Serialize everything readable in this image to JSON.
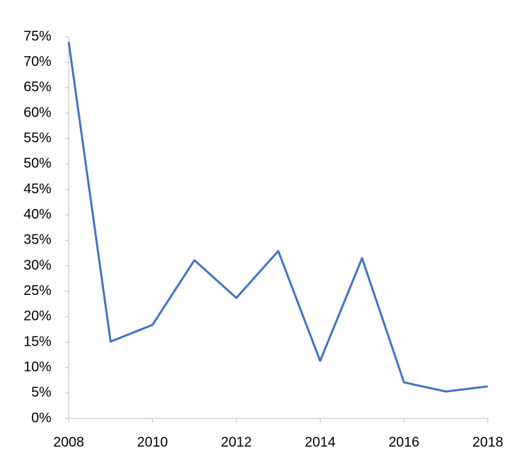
{
  "chart_data": {
    "type": "line",
    "x": [
      2008,
      2009,
      2010,
      2011,
      2012,
      2013,
      2014,
      2015,
      2016,
      2017,
      2018
    ],
    "series": [
      {
        "color": "#4472c4",
        "values": [
          74.0,
          15.1,
          18.4,
          31.1,
          23.7,
          32.9,
          11.3,
          31.5,
          7.1,
          5.3,
          6.3
        ]
      }
    ],
    "xlim": [
      2008,
      2018
    ],
    "xticks": [
      2008,
      2010,
      2012,
      2014,
      2016,
      2018
    ],
    "ylim": [
      0,
      75
    ],
    "yticks": [
      {
        "value": 0,
        "label": "0%"
      },
      {
        "value": 5,
        "label": "5%"
      },
      {
        "value": 10,
        "label": "10%"
      },
      {
        "value": 15,
        "label": "15%"
      },
      {
        "value": 20,
        "label": "20%"
      },
      {
        "value": 25,
        "label": "25%"
      },
      {
        "value": 30,
        "label": "30%"
      },
      {
        "value": 35,
        "label": "35%"
      },
      {
        "value": 40,
        "label": "40%"
      },
      {
        "value": 45,
        "label": "45%"
      },
      {
        "value": 50,
        "label": "50%"
      },
      {
        "value": 55,
        "label": "55%"
      },
      {
        "value": 60,
        "label": "60%"
      },
      {
        "value": 65,
        "label": "65%"
      },
      {
        "value": 70,
        "label": "70%"
      },
      {
        "value": 75,
        "label": "75%"
      }
    ],
    "grid": false
  }
}
